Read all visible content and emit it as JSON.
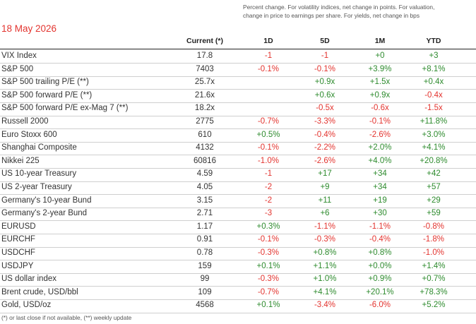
{
  "date": "18 May 2026",
  "note": "Percent change. For volatility indices, net change in points. For valuation, change in price to earnings per share. For yields,  net change in bps",
  "columns": {
    "current": "Current (*)",
    "d1": "1D",
    "d5": "5D",
    "m1": "1M",
    "ytd": "YTD"
  },
  "rows": [
    {
      "name": "VIX Index",
      "current": "17.8",
      "d1": "-1",
      "d5": "-1",
      "m1": "+0",
      "ytd": "+3"
    },
    {
      "name": "S&P 500",
      "current": "7403",
      "d1": "-0.1%",
      "d5": "-0.1%",
      "m1": "+3.9%",
      "ytd": "+8.1%"
    },
    {
      "name": "S&P 500 trailing P/E (**)",
      "current": "25.7x",
      "d1": "",
      "d5": "+0.9x",
      "m1": "+1.5x",
      "ytd": "+0.4x"
    },
    {
      "name": "S&P 500 forward P/E (**)",
      "current": "21.6x",
      "d1": "",
      "d5": "+0.6x",
      "m1": "+0.9x",
      "ytd": "-0.4x"
    },
    {
      "name": "S&P 500 forward P/E ex-Mag 7 (**)",
      "current": "18.2x",
      "d1": "",
      "d5": "-0.5x",
      "m1": "-0.6x",
      "ytd": "-1.5x"
    },
    {
      "name": "Russell 2000",
      "current": "2775",
      "d1": "-0.7%",
      "d5": "-3.3%",
      "m1": "-0.1%",
      "ytd": "+11.8%"
    },
    {
      "name": "Euro Stoxx 600",
      "current": "610",
      "d1": "+0.5%",
      "d5": "-0.4%",
      "m1": "-2.6%",
      "ytd": "+3.0%"
    },
    {
      "name": "Shanghai Composite",
      "current": "4132",
      "d1": "-0.1%",
      "d5": "-2.2%",
      "m1": "+2.0%",
      "ytd": "+4.1%"
    },
    {
      "name": "Nikkei 225",
      "current": "60816",
      "d1": "-1.0%",
      "d5": "-2.6%",
      "m1": "+4.0%",
      "ytd": "+20.8%"
    },
    {
      "name": "US 10-year Treasury",
      "current": "4.59",
      "d1": "-1",
      "d5": "+17",
      "m1": "+34",
      "ytd": "+42"
    },
    {
      "name": "US 2-year Treasury",
      "current": "4.05",
      "d1": "-2",
      "d5": "+9",
      "m1": "+34",
      "ytd": "+57"
    },
    {
      "name": "Germany's 10-year Bund",
      "current": "3.15",
      "d1": "-2",
      "d5": "+11",
      "m1": "+19",
      "ytd": "+29"
    },
    {
      "name": "Germany's 2-year Bund",
      "current": "2.71",
      "d1": "-3",
      "d5": "+6",
      "m1": "+30",
      "ytd": "+59"
    },
    {
      "name": "EURUSD",
      "current": "1.17",
      "d1": "+0.3%",
      "d5": "-1.1%",
      "m1": "-1.1%",
      "ytd": "-0.8%"
    },
    {
      "name": "EURCHF",
      "current": "0.91",
      "d1": "-0.1%",
      "d5": "-0.3%",
      "m1": "-0.4%",
      "ytd": "-1.8%"
    },
    {
      "name": "USDCHF",
      "current": "0.78",
      "d1": "-0.3%",
      "d5": "+0.8%",
      "m1": "+0.8%",
      "ytd": "-1.0%"
    },
    {
      "name": "USDJPY",
      "current": "159",
      "d1": "+0.1%",
      "d5": "+1.1%",
      "m1": "+0.0%",
      "ytd": "+1.4%"
    },
    {
      "name": "US dollar index",
      "current": "99",
      "d1": "-0.3%",
      "d5": "+1.0%",
      "m1": "+0.9%",
      "ytd": "+0.7%"
    },
    {
      "name": "Brent crude, USD/bbl",
      "current": "109",
      "d1": "-0.7%",
      "d5": "+4.1%",
      "m1": "+20.1%",
      "ytd": "+78.3%"
    },
    {
      "name": "Gold,  USD/oz",
      "current": "4568",
      "d1": "+0.1%",
      "d5": "-3.4%",
      "m1": "-6.0%",
      "ytd": "+5.2%"
    }
  ],
  "footnote": "(*) or last close if not available, (**) weekly update",
  "colors": {
    "negative": "#e3342f",
    "positive": "#2e8b2e",
    "date": "#e3342f"
  }
}
